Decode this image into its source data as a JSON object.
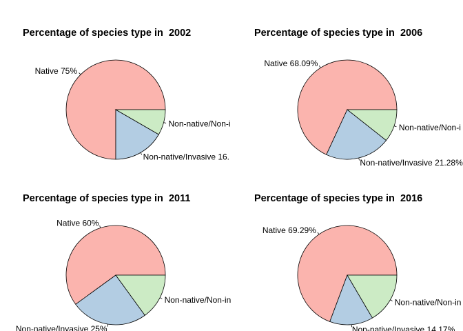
{
  "chart_data": [
    {
      "type": "pie",
      "title": "Percentage of species type in  2002",
      "slices": [
        {
          "label": "Native 75%",
          "value": 75
        },
        {
          "label": "Non-native/Invasive 16.",
          "value": 16.67
        },
        {
          "label": "Non-native/Non-i",
          "value": 8.33
        }
      ]
    },
    {
      "type": "pie",
      "title": "Percentage of species type in  2006",
      "slices": [
        {
          "label": "Native 68.09%",
          "value": 68.09
        },
        {
          "label": "Non-native/Invasive 21.28%",
          "value": 21.28
        },
        {
          "label": "Non-native/Non-i",
          "value": 10.64
        }
      ]
    },
    {
      "type": "pie",
      "title": "Percentage of species type in  2011",
      "slices": [
        {
          "label": "Native 60%",
          "value": 60
        },
        {
          "label": "Non-native/Invasive 25%",
          "value": 25
        },
        {
          "label": "Non-native/Non-in",
          "value": 15
        }
      ]
    },
    {
      "type": "pie",
      "title": "Percentage of species type in  2016",
      "slices": [
        {
          "label": "Native 69.29%",
          "value": 69.29
        },
        {
          "label": "Non-native/Invasive 14.17%",
          "value": 14.17
        },
        {
          "label": "Non-native/Non-in",
          "value": 16.54
        }
      ]
    }
  ],
  "colors": {
    "native": "#FBB4AE",
    "invasive": "#B3CDE3",
    "non_invasive": "#CCEBC5"
  }
}
